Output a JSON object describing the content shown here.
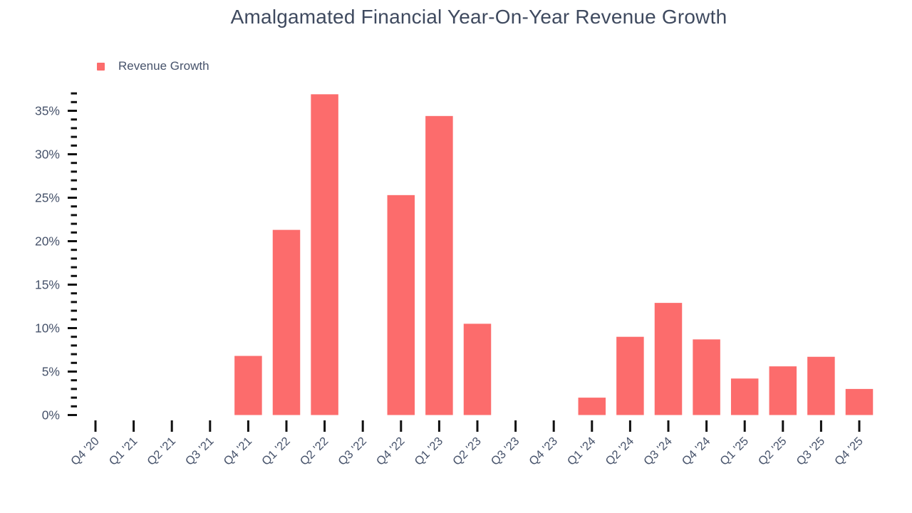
{
  "title": "Amalgamated Financial Year-On-Year Revenue Growth",
  "legend": {
    "label": "Revenue Growth"
  },
  "colors": {
    "bar": "#fc6c6c",
    "axis_label": "#47536b",
    "tick": "#111111",
    "title": "#3f4a5f",
    "background": "#ffffff"
  },
  "chart_data": {
    "type": "bar",
    "title": "Amalgamated Financial Year-On-Year Revenue Growth",
    "xlabel": "",
    "ylabel": "",
    "categories": [
      "Q4 '20",
      "Q1 '21",
      "Q2 '21",
      "Q3 '21",
      "Q4 '21",
      "Q1 '22",
      "Q2 '22",
      "Q3 '22",
      "Q4 '22",
      "Q1 '23",
      "Q2 '23",
      "Q3 '23",
      "Q4 '23",
      "Q1 '24",
      "Q2 '24",
      "Q3 '24",
      "Q4 '24",
      "Q1 '25",
      "Q2 '25",
      "Q3 '25",
      "Q4 '25"
    ],
    "series": [
      {
        "name": "Revenue Growth",
        "color": "#fc6c6c",
        "values": [
          null,
          null,
          null,
          null,
          6.8,
          21.3,
          36.9,
          null,
          25.3,
          34.4,
          10.5,
          null,
          null,
          2.0,
          9.0,
          12.9,
          8.7,
          4.2,
          5.6,
          6.7,
          3.0
        ]
      }
    ],
    "value_unit": "%",
    "ylim": [
      0,
      37
    ],
    "y_major_tick_step": 5,
    "y_minor_tick_step": 1,
    "y_major_tick_labels": [
      "0%",
      "5%",
      "10%",
      "15%",
      "20%",
      "25%",
      "30%",
      "35%"
    ],
    "grid": false,
    "legend_position": "top-left"
  }
}
